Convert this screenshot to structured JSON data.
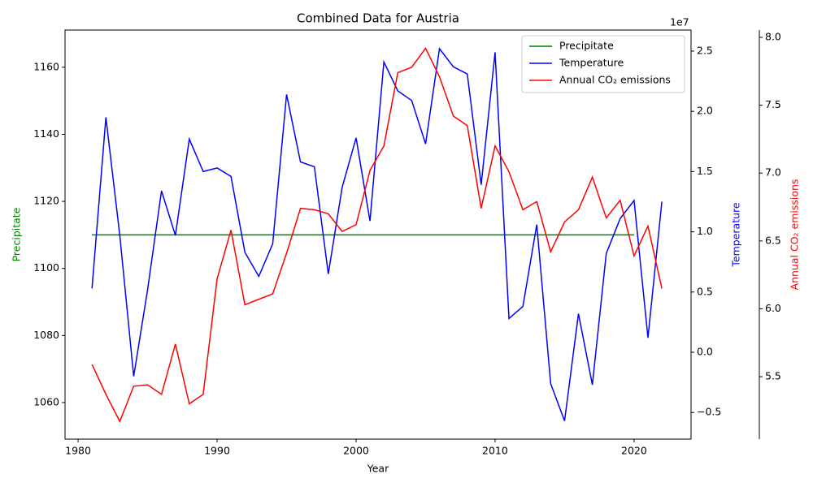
{
  "chart_data": {
    "type": "line",
    "title": "Combined Data for Austria",
    "x_label": "Year",
    "y_label": "Precipitate",
    "y2_label": "Temperature",
    "y3_label": "Annual CO₂ emissions",
    "y2_offset_text": "1e7",
    "legend": "upper right",
    "x": [
      1981,
      1982,
      1983,
      1984,
      1985,
      1986,
      1987,
      1988,
      1989,
      1990,
      1991,
      1992,
      1993,
      1994,
      1995,
      1996,
      1997,
      1998,
      1999,
      2000,
      2001,
      2002,
      2003,
      2004,
      2005,
      2006,
      2007,
      2008,
      2009,
      2010,
      2011,
      2012,
      2013,
      2014,
      2015,
      2016,
      2017,
      2018,
      2019,
      2020,
      2021,
      2022
    ],
    "xlim": [
      1979.06,
      2024.1
    ],
    "xticks": [
      1980,
      1990,
      2000,
      2010,
      2020
    ],
    "ylim": [
      1049.1,
      1171.1
    ],
    "yticks": [
      1060,
      1080,
      1100,
      1120,
      1140,
      1160
    ],
    "y2lim": [
      -0.721,
      2.675
    ],
    "y2ticks": [
      {
        "value": -0.5,
        "label": "−0.5"
      },
      {
        "value": 0,
        "label": "0.0"
      },
      0.5,
      {
        "value": 1,
        "label": "1.0"
      },
      1.5,
      {
        "value": 2,
        "label": "2.0"
      },
      2.5
    ],
    "y3lim": [
      5.04,
      8.054
    ],
    "y3ticks": [
      5.5,
      {
        "value": 6,
        "label": "6.0"
      },
      6.5,
      {
        "value": 7,
        "label": "7.0"
      },
      7.5,
      {
        "value": 8,
        "label": "8.0"
      }
    ],
    "series": [
      {
        "name": "Precipitate",
        "color": "#008000",
        "axis": "y",
        "values": [
          1110,
          1110,
          1110,
          1110,
          1110,
          1110,
          1110,
          1110,
          1110,
          1110,
          1110,
          1110,
          1110,
          1110,
          1110,
          1110,
          1110,
          1110,
          1110,
          1110,
          1110,
          1110,
          1110,
          1110,
          1110,
          1110,
          1110,
          1110,
          1110,
          1110,
          1110,
          1110,
          1110,
          1110,
          1110,
          1110,
          1110,
          1110,
          1110,
          1110,
          null,
          null
        ]
      },
      {
        "name": "Temperature",
        "color": "#0000ff",
        "axis": "y2",
        "values": [
          0.53,
          1.95,
          0.97,
          -0.2,
          0.52,
          1.34,
          0.97,
          1.77,
          1.5,
          1.53,
          1.46,
          0.83,
          0.63,
          0.9,
          2.14,
          1.58,
          1.54,
          0.65,
          1.37,
          1.78,
          1.09,
          2.41,
          2.17,
          2.09,
          1.73,
          2.52,
          2.37,
          2.31,
          1.39,
          2.49,
          0.28,
          0.38,
          1.06,
          -0.26,
          -0.57,
          0.32,
          -0.27,
          0.82,
          1.11,
          1.26,
          0.12,
          1.25
        ]
      },
      {
        "name": "Annual CO₂ emissions",
        "color": "#ff0000",
        "axis": "y3",
        "values": [
          5.59,
          5.37,
          5.17,
          5.43,
          5.44,
          5.37,
          5.74,
          5.3,
          5.37,
          6.22,
          6.58,
          6.03,
          6.07,
          6.11,
          6.41,
          6.74,
          6.73,
          6.7,
          6.57,
          6.62,
          7.02,
          7.2,
          7.74,
          7.78,
          7.92,
          7.71,
          7.42,
          7.35,
          6.74,
          7.2,
          7.01,
          6.73,
          6.79,
          6.42,
          6.64,
          6.73,
          6.97,
          6.67,
          6.8,
          6.39,
          6.61,
          6.15
        ]
      }
    ]
  }
}
